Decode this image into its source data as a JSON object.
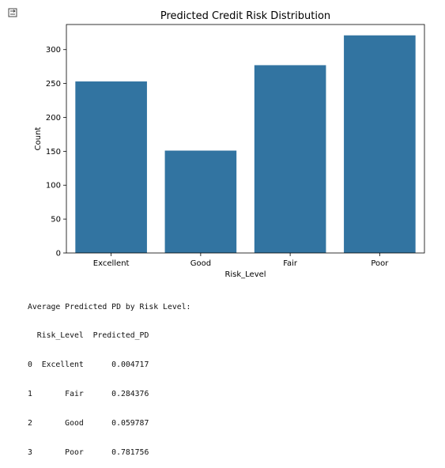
{
  "output_toggle": {
    "icon": "output-collapse-icon"
  },
  "chart_data": {
    "type": "bar",
    "title": "Predicted Credit Risk Distribution",
    "xlabel": "Risk_Level",
    "ylabel": "Count",
    "categories": [
      "Excellent",
      "Good",
      "Fair",
      "Poor"
    ],
    "values": [
      253,
      151,
      277,
      321
    ],
    "ylim": [
      0,
      337
    ],
    "yticks": [
      "0",
      "50",
      "100",
      "150",
      "200",
      "250",
      "300"
    ],
    "bar_color": "#3274a1",
    "grid": false,
    "legend": "none"
  },
  "text_output": {
    "lines": [
      "Average Predicted PD by Risk Level:",
      "  Risk_Level  Predicted_PD",
      "0  Excellent      0.004717",
      "1       Fair      0.284376",
      "2       Good      0.059787",
      "3       Poor      0.781756"
    ]
  }
}
